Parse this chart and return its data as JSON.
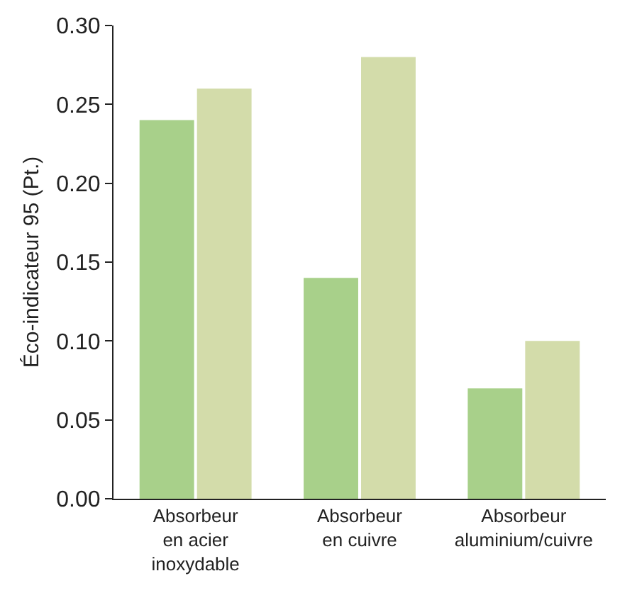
{
  "chart_data": {
    "type": "bar",
    "ylabel": "Éco-indicateur 95 (Pt.)",
    "categories": [
      "Absorbeur en acier inoxydable",
      "Absorbeur en cuivre",
      "Absorbeur aluminium/cuivre"
    ],
    "series": [
      {
        "color": "#a8d08a",
        "values": [
          0.24,
          0.14,
          0.07
        ]
      },
      {
        "color": "#d3dcaa",
        "values": [
          0.26,
          0.28,
          0.1
        ]
      }
    ],
    "ylim": [
      0,
      0.3
    ],
    "yticks": [
      {
        "value": 0,
        "label": "0.00"
      },
      {
        "value": 0.05,
        "label": "0.05"
      },
      {
        "value": 0.1,
        "label": "0.10"
      },
      {
        "value": 0.15,
        "label": "0.15"
      },
      {
        "value": 0.2,
        "label": "0.20"
      },
      {
        "value": 0.25,
        "label": "0.25"
      },
      {
        "value": 0.3,
        "label": "0.30"
      }
    ],
    "grid": false
  }
}
